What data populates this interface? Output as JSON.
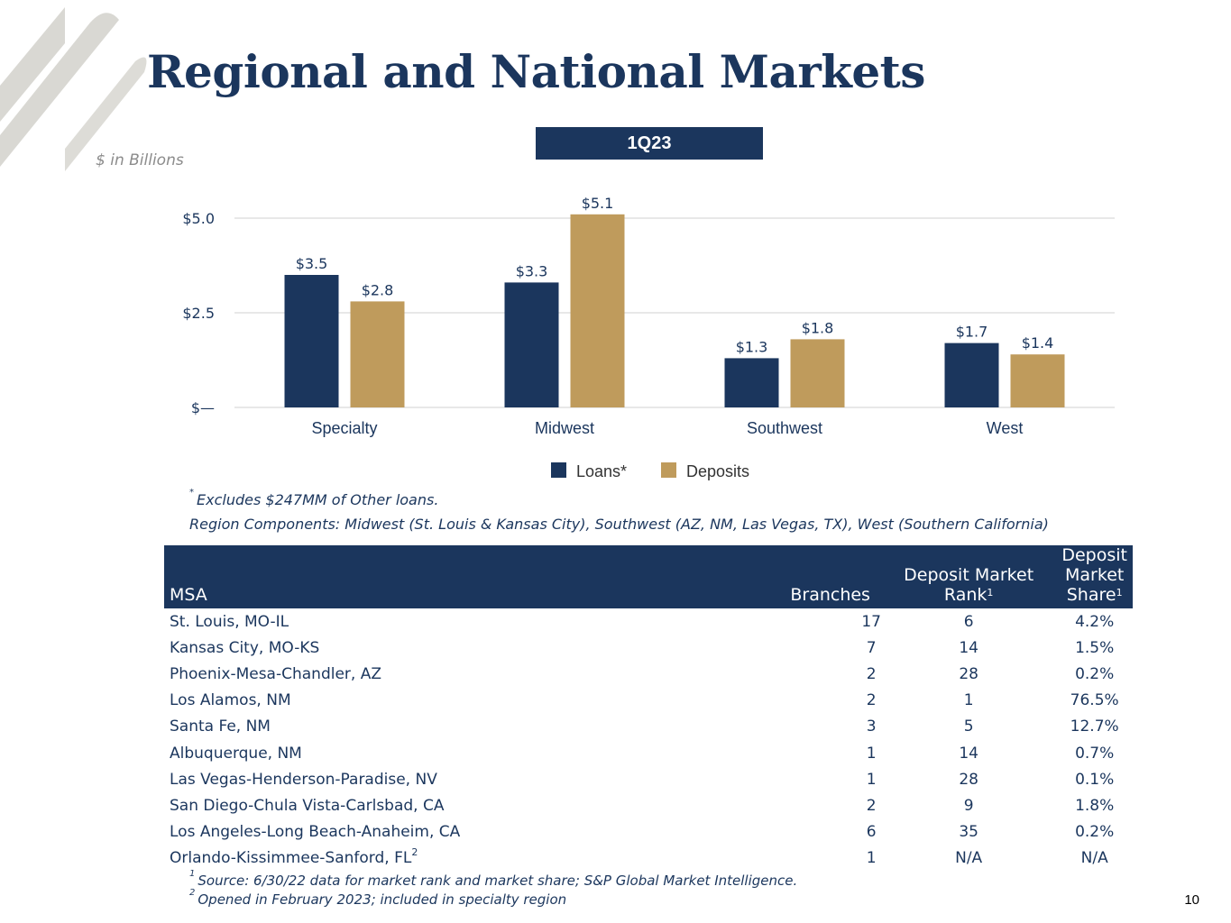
{
  "title": "Regional and National Markets",
  "period_label": "1Q23",
  "units_label": "$ in Billions",
  "chart_data": {
    "type": "bar",
    "categories": [
      "Specialty",
      "Midwest",
      "Southwest",
      "West"
    ],
    "series": [
      {
        "name": "Loans*",
        "color": "#1b365d",
        "values": [
          3.5,
          3.3,
          1.3,
          1.7
        ],
        "labels": [
          "$3.5",
          "$3.3",
          "$1.3",
          "$1.7"
        ]
      },
      {
        "name": "Deposits",
        "color": "#bf9b5c",
        "values": [
          2.8,
          5.1,
          1.8,
          1.4
        ],
        "labels": [
          "$2.8",
          "$5.1",
          "$1.8",
          "$1.4"
        ]
      }
    ],
    "ylim": [
      0,
      5.0
    ],
    "yticks": [
      0,
      2.5,
      5.0
    ],
    "ytick_labels": [
      "$—",
      "$2.5",
      "$5.0"
    ],
    "grid": true,
    "legend_position": "bottom"
  },
  "notes": {
    "excludes_mark": "*",
    "excludes": "Excludes $247MM of Other loans.",
    "regions": "Region Components: Midwest (St. Louis & Kansas City), Southwest (AZ, NM, Las Vegas, TX), West (Southern California)"
  },
  "table": {
    "headers": {
      "msa": "MSA",
      "branches": "Branches",
      "rank_line1": "Deposit Market",
      "rank_line2": "Rank",
      "rank_sup": "1",
      "share_line1": "Deposit Market",
      "share_line2": "Share",
      "share_sup": "1"
    },
    "rows": [
      {
        "msa": "St. Louis, MO-IL",
        "sup": "",
        "branches": "17",
        "rank": "6",
        "share": "4.2%"
      },
      {
        "msa": "Kansas City, MO-KS",
        "sup": "",
        "branches": "7",
        "rank": "14",
        "share": "1.5%"
      },
      {
        "msa": "Phoenix-Mesa-Chandler, AZ",
        "sup": "",
        "branches": "2",
        "rank": "28",
        "share": "0.2%"
      },
      {
        "msa": "Los Alamos, NM",
        "sup": "",
        "branches": "2",
        "rank": "1",
        "share": "76.5%"
      },
      {
        "msa": "Santa Fe, NM",
        "sup": "",
        "branches": "3",
        "rank": "5",
        "share": "12.7%"
      },
      {
        "msa": "Albuquerque, NM",
        "sup": "",
        "branches": "1",
        "rank": "14",
        "share": "0.7%"
      },
      {
        "msa": "Las Vegas-Henderson-Paradise, NV",
        "sup": "",
        "branches": "1",
        "rank": "28",
        "share": "0.1%"
      },
      {
        "msa": "San Diego-Chula Vista-Carlsbad, CA",
        "sup": "",
        "branches": "2",
        "rank": "9",
        "share": "1.8%"
      },
      {
        "msa": "Los Angeles-Long Beach-Anaheim, CA",
        "sup": "",
        "branches": "6",
        "rank": "35",
        "share": "0.2%"
      },
      {
        "msa": "Orlando-Kissimmee-Sanford, FL",
        "sup": "2",
        "branches": "1",
        "rank": "N/A",
        "share": "N/A"
      }
    ]
  },
  "footnotes": {
    "f1_mark": "1",
    "f1": "Source: 6/30/22 data for market rank and market share; S&P Global Market Intelligence.",
    "f2_mark": "2",
    "f2": "Opened in February 2023; included in specialty region"
  },
  "page_number": "10",
  "colors": {
    "navy": "#1b365d",
    "gold": "#bf9b5c",
    "logo_gray": "#d9d8d3"
  }
}
